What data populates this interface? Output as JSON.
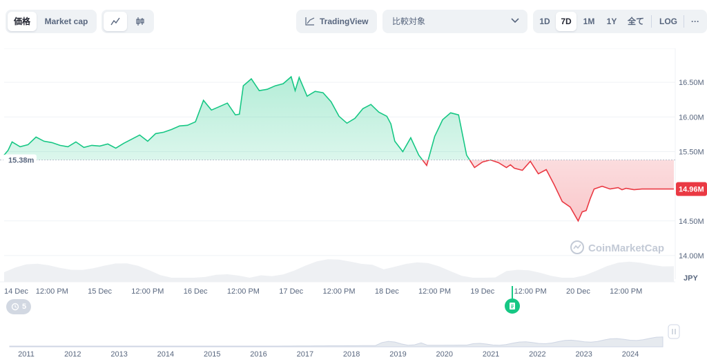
{
  "toolbar": {
    "view_toggle": {
      "price": "価格",
      "market_cap": "Market cap",
      "active": "price"
    },
    "chart_style": {
      "line_icon": "line-chart-icon",
      "candle_icon": "candlestick-icon",
      "active": "line"
    },
    "tradingview_label": "TradingView",
    "compare_placeholder": "比較対象",
    "ranges": [
      "1D",
      "7D",
      "1M",
      "1Y",
      "全て"
    ],
    "active_range": "7D",
    "log_label": "LOG",
    "more_label": "···"
  },
  "colors": {
    "up": "#16c784",
    "down": "#ea3943",
    "up_fill": "#16c784",
    "down_fill": "#ea3943",
    "grid": "#eff2f5",
    "text": "#58667e"
  },
  "chart_data": {
    "type": "area",
    "currency": "JPY",
    "baseline": 15380000,
    "baseline_label": "15.38m",
    "current_label": "14.96M",
    "ylim": [
      13800000,
      16950000
    ],
    "y_ticks": [
      {
        "v": 16500000,
        "label": "16.50M"
      },
      {
        "v": 16000000,
        "label": "16.00M"
      },
      {
        "v": 15500000,
        "label": "15.50M"
      },
      {
        "v": 14500000,
        "label": "14.50M"
      },
      {
        "v": 14000000,
        "label": "14.00M"
      }
    ],
    "y_unit_label": "JPY",
    "x_ticks": [
      {
        "t": 0,
        "label": "14 Dec"
      },
      {
        "t": 12,
        "label": "12:00 PM"
      },
      {
        "t": 24,
        "label": "15 Dec"
      },
      {
        "t": 36,
        "label": "12:00 PM"
      },
      {
        "t": 48,
        "label": "16 Dec"
      },
      {
        "t": 60,
        "label": "12:00 PM"
      },
      {
        "t": 72,
        "label": "17 Dec"
      },
      {
        "t": 84,
        "label": "12:00 PM"
      },
      {
        "t": 96,
        "label": "18 Dec"
      },
      {
        "t": 108,
        "label": "12:00 PM"
      },
      {
        "t": 120,
        "label": "19 Dec"
      },
      {
        "t": 132,
        "label": "12:00 PM"
      },
      {
        "t": 144,
        "label": "20 Dec"
      },
      {
        "t": 156,
        "label": "12:00 PM"
      }
    ],
    "x_unit": "hours since 14 Dec 00:00",
    "xlim": [
      0,
      168
    ],
    "series": [
      {
        "x": [
          0,
          1,
          2,
          4,
          6,
          8,
          10,
          12,
          14,
          16,
          18,
          20,
          22,
          24,
          26,
          28,
          30,
          32,
          34,
          36,
          38,
          40,
          42,
          44,
          46,
          48,
          50,
          52,
          54,
          56,
          58,
          59,
          60,
          62,
          64,
          66,
          68,
          70,
          72,
          73,
          74,
          76,
          78,
          80,
          82,
          84,
          86,
          88,
          90,
          92,
          94,
          96,
          97,
          98,
          100,
          102,
          104,
          106,
          108,
          110,
          112,
          114,
          116,
          118,
          120,
          122,
          124,
          126,
          127,
          128,
          130,
          132,
          134,
          136,
          138,
          140,
          142,
          144,
          145,
          146,
          147,
          148,
          150,
          152,
          154,
          155,
          156,
          157,
          158,
          160,
          162,
          163,
          164,
          165,
          166,
          167,
          168
        ],
        "values": [
          15450000,
          15520000,
          15640000,
          15570000,
          15600000,
          15710000,
          15650000,
          15630000,
          15590000,
          15570000,
          15640000,
          15560000,
          15590000,
          15580000,
          15610000,
          15550000,
          15620000,
          15680000,
          15740000,
          15650000,
          15760000,
          15780000,
          15820000,
          15870000,
          15880000,
          15930000,
          16240000,
          16100000,
          16150000,
          16200000,
          16030000,
          16040000,
          16450000,
          16550000,
          16380000,
          16400000,
          16450000,
          16480000,
          16580000,
          16380000,
          16570000,
          16300000,
          16370000,
          16350000,
          16220000,
          16010000,
          15910000,
          15980000,
          16120000,
          16180000,
          16070000,
          16010000,
          15900000,
          15650000,
          15500000,
          15700000,
          15450000,
          15300000,
          15720000,
          15960000,
          16060000,
          16030000,
          15450000,
          15270000,
          15350000,
          15380000,
          15340000,
          15270000,
          15310000,
          15260000,
          15230000,
          15360000,
          15180000,
          15240000,
          15020000,
          14780000,
          14700000,
          14500000,
          14630000,
          14650000,
          14820000,
          14960000,
          15000000,
          14960000,
          14980000,
          14950000,
          14970000,
          14960000,
          14950000,
          14960000,
          14960000,
          14960000,
          14960000,
          14960000,
          14960000,
          14960000,
          14960000
        ]
      }
    ],
    "volume_note": "volume band along bottom of price panel",
    "overview": {
      "x_ticks": [
        "2011",
        "2012",
        "2013",
        "2014",
        "2015",
        "2016",
        "2017",
        "2018",
        "2019",
        "2020",
        "2021",
        "2022",
        "2023",
        "2024"
      ]
    },
    "history_badge": "5",
    "watermark": "CoinMarketCap"
  }
}
